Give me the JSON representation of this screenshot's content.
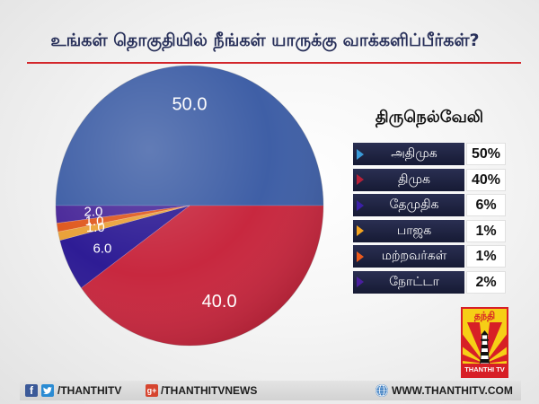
{
  "chart_data": {
    "type": "pie",
    "title": "உங்கள் தொகுதியில் நீங்கள் யாருக்கு வாக்களிப்பீர்கள்?",
    "legend_title": "திருநெல்வேலி",
    "legend_placement": "right",
    "slices": [
      {
        "label": "அதிமுக",
        "value": 50.0,
        "data_label": "50.0",
        "legend_value": "50%",
        "color": "#3f5fa6",
        "marker_color": "#3a9ad9"
      },
      {
        "label": "திமுக",
        "value": 40.0,
        "data_label": "40.0",
        "legend_value": "40%",
        "color": "#c8283f",
        "marker_color": "#b52038"
      },
      {
        "label": "தேமுதிக",
        "value": 6.0,
        "data_label": "6.0",
        "legend_value": "6%",
        "color": "#2e1c95",
        "marker_color": "#3b1fa8"
      },
      {
        "label": "பாஜக",
        "value": 1.0,
        "data_label": "1.0",
        "legend_value": "1%",
        "color": "#eaa23a",
        "marker_color": "#f4a41f"
      },
      {
        "label": "மற்றவர்கள்",
        "value": 1.0,
        "data_label": "1.0",
        "legend_value": "1%",
        "color": "#e05a20",
        "marker_color": "#ec5a1c"
      },
      {
        "label": "நோட்டா",
        "value": 2.0,
        "data_label": "2.0",
        "legend_value": "2%",
        "color": "#4b2a9a",
        "marker_color": "#4a1f9e"
      }
    ]
  },
  "brand": {
    "logo_top": "தந்தி",
    "logo_bottom": "THANTHI TV"
  },
  "footer": {
    "facebook": {
      "icon": "facebook-icon",
      "glyph": "f",
      "color": "#3b5998"
    },
    "twitter": {
      "icon": "twitter-icon",
      "color": "#2a8bd3"
    },
    "social_handle": "/THANTHITV",
    "google_plus": {
      "icon": "google-plus-icon",
      "glyph": "g+",
      "color": "#d6452f"
    },
    "news_handle": "/THANTHITVNEWS",
    "globe": {
      "icon": "globe-icon",
      "color": "#3a7cc0"
    },
    "website": "WWW.THANTHITV.COM"
  }
}
